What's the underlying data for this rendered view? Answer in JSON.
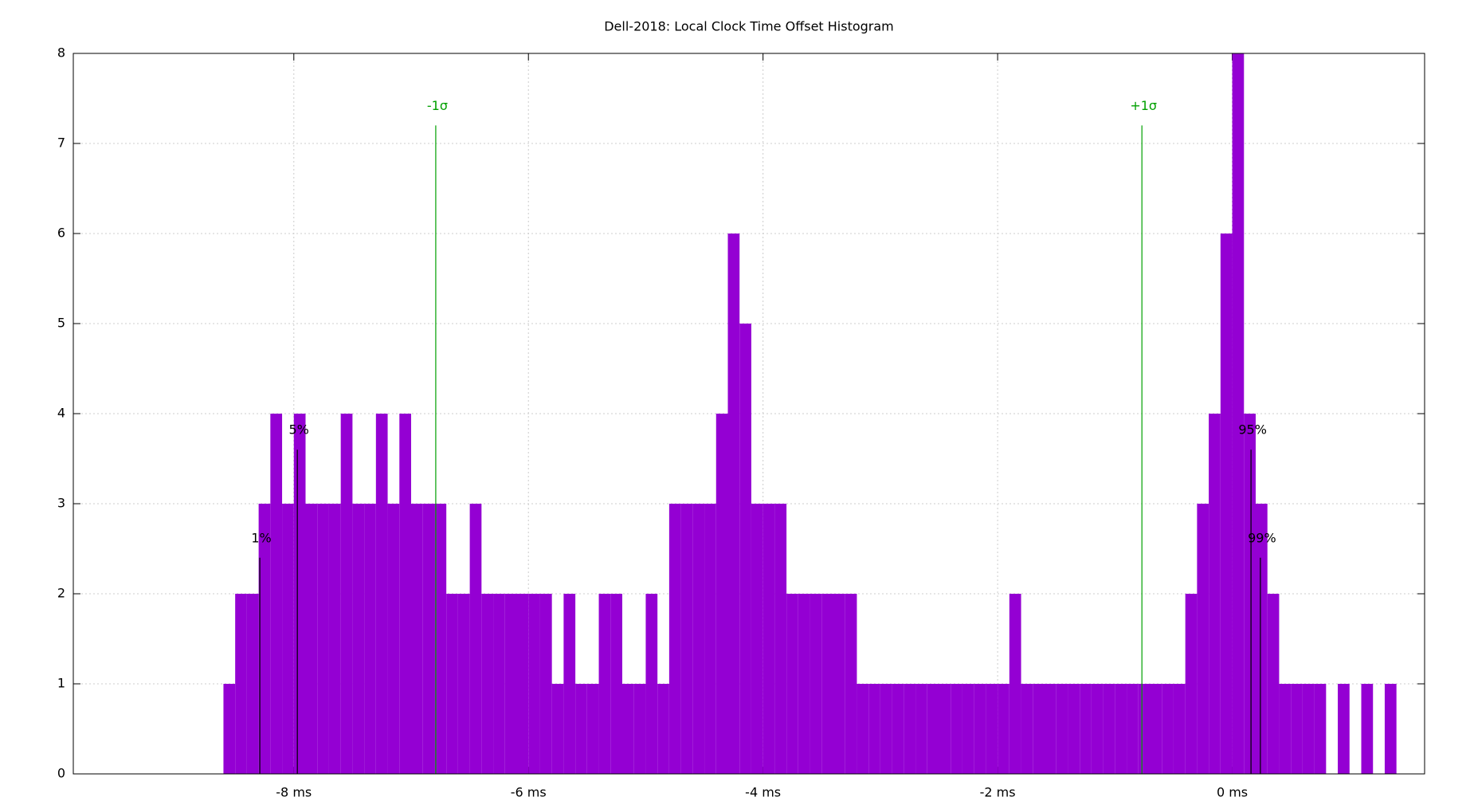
{
  "chart_data": {
    "type": "histogram",
    "title": "Dell-2018: Local Clock Time Offset Histogram",
    "bins": [
      -8.6,
      -8.5,
      -8.4,
      -8.3,
      -8.2,
      -8.1,
      -8.0,
      -7.9,
      -7.8,
      -7.7,
      -7.6,
      -7.5,
      -7.4,
      -7.3,
      -7.2,
      -7.1,
      -7.0,
      -6.9,
      -6.8,
      -6.7,
      -6.6,
      -6.5,
      -6.4,
      -6.3,
      -6.2,
      -6.1,
      -6.0,
      -5.9,
      -5.8,
      -5.7,
      -5.6,
      -5.5,
      -5.4,
      -5.3,
      -5.2,
      -5.1,
      -5.0,
      -4.9,
      -4.8,
      -4.7,
      -4.6,
      -4.5,
      -4.4,
      -4.3,
      -4.2,
      -4.1,
      -4.0,
      -3.9,
      -3.8,
      -3.7,
      -3.6,
      -3.5,
      -3.4,
      -3.3,
      -3.2,
      -3.1,
      -3.0,
      -2.9,
      -2.8,
      -2.7,
      -2.6,
      -2.5,
      -2.4,
      -2.3,
      -2.2,
      -2.1,
      -2.0,
      -1.9,
      -1.8,
      -1.7,
      -1.6,
      -1.5,
      -1.4,
      -1.3,
      -1.2,
      -1.1,
      -1.0,
      -0.9,
      -0.8,
      -0.7,
      -0.6,
      -0.5,
      -0.4,
      -0.3,
      -0.2,
      -0.1,
      0,
      0.1,
      0.2,
      0.3,
      0.4,
      0.5,
      0.6,
      0.7,
      0.8,
      0.9,
      1.0,
      1.1,
      1.2,
      1.3,
      1.4
    ],
    "values": [
      1,
      2,
      2,
      3,
      4,
      3,
      4,
      3,
      3,
      3,
      4,
      3,
      3,
      4,
      3,
      4,
      3,
      3,
      3,
      2,
      2,
      3,
      2,
      2,
      2,
      2,
      2,
      2,
      1,
      2,
      1,
      1,
      2,
      2,
      1,
      1,
      2,
      1,
      3,
      3,
      3,
      3,
      4,
      6,
      5,
      3,
      3,
      3,
      2,
      2,
      2,
      2,
      2,
      2,
      1,
      1,
      1,
      1,
      1,
      1,
      1,
      1,
      1,
      1,
      1,
      1,
      1,
      2,
      1,
      1,
      1,
      1,
      1,
      1,
      1,
      1,
      1,
      1,
      1,
      1,
      1,
      1,
      2,
      3,
      4,
      6,
      8,
      4,
      3,
      2,
      1,
      1,
      1,
      1,
      0,
      1,
      0,
      1,
      0,
      1
    ],
    "color": "#9400d3",
    "markers": [
      {
        "label": "1%",
        "x": -8.29,
        "height": 2.4,
        "color": "#000000"
      },
      {
        "label": "5%",
        "x": -7.97,
        "height": 3.6,
        "color": "#000000"
      },
      {
        "label": "-1σ",
        "x": -6.79,
        "height": 7.2,
        "color": "#00a000"
      },
      {
        "label": "+1σ",
        "x": -0.77,
        "height": 7.2,
        "color": "#00a000"
      },
      {
        "label": "95%",
        "x": 0.16,
        "height": 3.6,
        "color": "#000000"
      },
      {
        "label": "99%",
        "x": 0.24,
        "height": 2.4,
        "color": "#000000"
      }
    ],
    "xlim": [
      -9.88,
      1.64
    ],
    "xticks": [
      {
        "value": -8,
        "label": "-8 ms"
      },
      {
        "value": -6,
        "label": "-6 ms"
      },
      {
        "value": -4,
        "label": "-4 ms"
      },
      {
        "value": -2,
        "label": "-2 ms"
      },
      {
        "value": 0,
        "label": "0 ms"
      }
    ],
    "ylim": [
      0,
      8
    ],
    "yticks": [
      0,
      1,
      2,
      3,
      4,
      5,
      6,
      7,
      8
    ],
    "grid": true
  }
}
